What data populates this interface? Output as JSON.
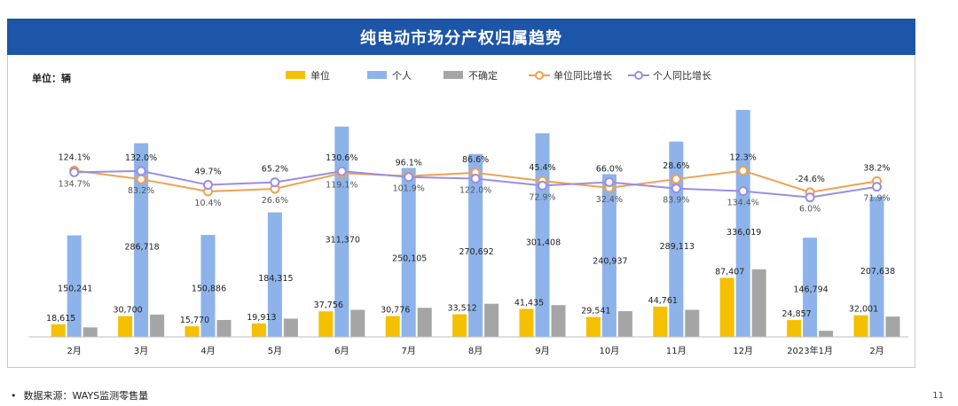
{
  "title": "纯电动市场分产权归属趋势",
  "unit_label": "单位：辆",
  "source": {
    "bullet": "•",
    "label": "数据来源：WAYS监测零售量"
  },
  "page_number": "11",
  "colors": {
    "unit": "#f5c000",
    "person": "#8db3ea",
    "unknown": "#a5a5a5",
    "unit_yoy": "#f0a050",
    "person_yoy": "#9b8ee0",
    "title_bg": "#1d55a8"
  },
  "chart_data": {
    "type": "bar",
    "categories": [
      "2月",
      "3月",
      "4月",
      "5月",
      "6月",
      "7月",
      "8月",
      "9月",
      "10月",
      "11月",
      "12月",
      "2023年1月",
      "2月"
    ],
    "series": [
      {
        "name": "单位",
        "type": "bar",
        "values": [
          18615,
          30700,
          15770,
          19913,
          37756,
          30776,
          33512,
          41435,
          29541,
          44761,
          87407,
          24857,
          32001
        ],
        "labels": [
          "18,615",
          "30,700",
          "15,770",
          "19,913",
          "37,756",
          "30,776",
          "33,512",
          "41,435",
          "29,541",
          "44,761",
          "87,407",
          "24,857",
          "32,001"
        ]
      },
      {
        "name": "个人",
        "type": "bar",
        "values": [
          150241,
          286718,
          150886,
          184315,
          311370,
          250105,
          270692,
          301408,
          240937,
          289113,
          336019,
          146794,
          207638
        ],
        "labels": [
          "150,241",
          "286,718",
          "150,886",
          "184,315",
          "311,370",
          "250,105",
          "270,692",
          "301,408",
          "240,937",
          "289,113",
          "336,019",
          "146,794",
          "207,638"
        ]
      },
      {
        "name": "不确定",
        "type": "bar",
        "values": [
          14000,
          33000,
          25000,
          27000,
          40000,
          43000,
          49000,
          47000,
          38000,
          40000,
          100000,
          9000,
          30000
        ]
      },
      {
        "name": "单位同比增长",
        "type": "line",
        "values": [
          134.7,
          83.2,
          10.4,
          26.6,
          119.1,
          101.9,
          122.0,
          72.9,
          32.4,
          83.9,
          134.4,
          6.0,
          71.9
        ],
        "labels": [
          "134.7%",
          "83.2%",
          "10.4%",
          "26.6%",
          "119.1%",
          "101.9%",
          "122.0%",
          "72.9%",
          "32.4%",
          "83.9%",
          "134.4%",
          "6.0%",
          "71.9%"
        ]
      },
      {
        "name": "个人同比增长",
        "type": "line",
        "values": [
          124.1,
          132.0,
          49.7,
          65.2,
          130.6,
          96.1,
          86.6,
          45.4,
          66.0,
          28.6,
          12.3,
          -24.6,
          38.2
        ],
        "labels": [
          "124.1%",
          "132.0%",
          "49.7%",
          "65.2%",
          "130.6%",
          "96.1%",
          "86.6%",
          "45.4%",
          "66.0%",
          "28.6%",
          "12.3%",
          "-24.6%",
          "38.2%"
        ]
      }
    ],
    "legend_position": "top",
    "grid": false
  }
}
